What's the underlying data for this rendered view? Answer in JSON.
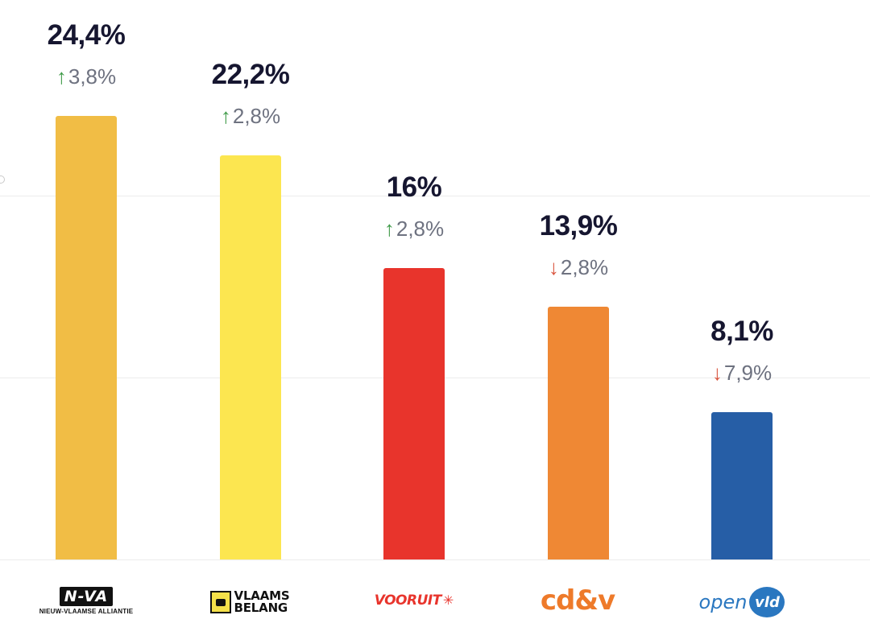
{
  "chart_data": {
    "type": "bar",
    "categories": [
      "N-VA",
      "Vlaams Belang",
      "Vooruit",
      "cd&v",
      "Open VLD"
    ],
    "values": [
      24.4,
      22.2,
      16,
      13.9,
      8.1
    ],
    "value_labels": [
      "24,4%",
      "22,2%",
      "16%",
      "13,9%",
      "8,1%"
    ],
    "changes": [
      {
        "direction": "up",
        "label": "3,8%",
        "value": 3.8
      },
      {
        "direction": "up",
        "label": "2,8%",
        "value": 2.8
      },
      {
        "direction": "up",
        "label": "2,8%",
        "value": 2.8
      },
      {
        "direction": "down",
        "label": "2,8%",
        "value": -2.8
      },
      {
        "direction": "down",
        "label": "7,9%",
        "value": -7.9
      }
    ],
    "ylim": [
      0,
      30
    ],
    "grid": true,
    "colors": [
      "#f1bd45",
      "#fce650",
      "#e8342c",
      "#ef8834",
      "#265ea6"
    ],
    "arrow_colors": {
      "up": "#3e9a48",
      "down": "#d9553f"
    }
  },
  "logos": {
    "nva": {
      "letters": "N-VA",
      "subtitle": "NIEUW-VLAAMSE ALLIANTIE"
    },
    "vlaams_belang": {
      "line1": "VLAAMS",
      "line2": "BELANG"
    },
    "vooruit": {
      "text": "VOORUIT",
      "star": "✳"
    },
    "cdv": {
      "text": "cd&v"
    },
    "open_vld": {
      "open": "open",
      "vld": "vld"
    }
  }
}
